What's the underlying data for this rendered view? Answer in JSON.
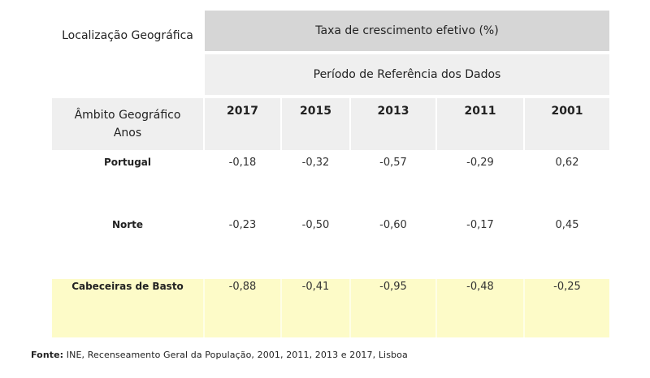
{
  "header": {
    "location_label": "Localização Geográfica",
    "title": "Taxa de crescimento efetivo (%)",
    "subtitle": "Período de Referência dos Dados",
    "ambito_line1": "Âmbito Geográfico",
    "ambito_line2": "Anos"
  },
  "years": [
    "2017",
    "2015",
    "2013",
    "2011",
    "2001"
  ],
  "rows": [
    {
      "label": "Portugal",
      "values": [
        "-0,18",
        "-0,32",
        "-0,57",
        "-0,29",
        "0,62"
      ]
    },
    {
      "label": "Norte",
      "values": [
        "-0,23",
        "-0,50",
        "-0,60",
        "-0,17",
        "0,45"
      ]
    },
    {
      "label": "Cabeceiras de Basto",
      "values": [
        "-0,88",
        "-0,41",
        "-0,95",
        "-0,48",
        "-0,25"
      ]
    }
  ],
  "colors": {
    "header_dark": "#d6d6d6",
    "header_light": "#efefef",
    "highlight_row": "#fdfbc8"
  },
  "footer": {
    "source_label": "Fonte:",
    "source_text": "INE, Recenseamento Geral da População, 2001, 2011, 2013 e 2017, Lisboa"
  }
}
